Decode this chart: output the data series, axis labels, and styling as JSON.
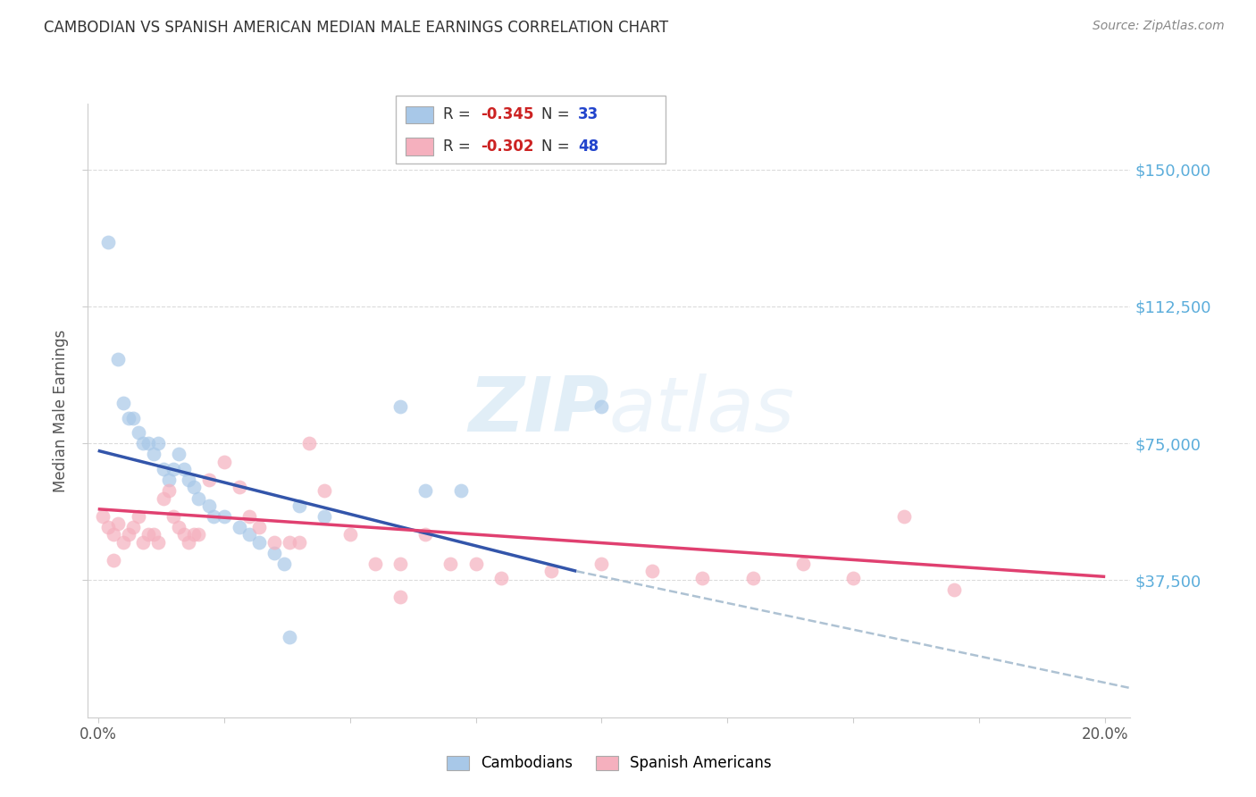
{
  "title": "CAMBODIAN VS SPANISH AMERICAN MEDIAN MALE EARNINGS CORRELATION CHART",
  "source": "Source: ZipAtlas.com",
  "ylabel": "Median Male Earnings",
  "ytick_labels": [
    "$37,500",
    "$75,000",
    "$112,500",
    "$150,000"
  ],
  "ytick_vals": [
    37500,
    75000,
    112500,
    150000
  ],
  "ylim": [
    0,
    168000
  ],
  "xlim": [
    -0.002,
    0.205
  ],
  "watermark_zip": "ZIP",
  "watermark_atlas": "atlas",
  "legend_r1": "R = ",
  "legend_v1": "-0.345",
  "legend_n1_label": "N = ",
  "legend_n1": "33",
  "legend_r2": "R = ",
  "legend_v2": "-0.302",
  "legend_n2_label": "N = ",
  "legend_n2": "48",
  "legend_label1": "Cambodians",
  "legend_label2": "Spanish Americans",
  "cambodian_color": "#a8c8e8",
  "spanish_color": "#f5b0be",
  "cambodian_edge": "#7090c0",
  "spanish_edge": "#e06070",
  "blue_line_color": "#3355aa",
  "pink_line_color": "#e04070",
  "dashed_line_color": "#a0b8cc",
  "right_label_color": "#5baddb",
  "grid_color": "#cccccc",
  "background_color": "#ffffff",
  "title_color": "#333333",
  "source_color": "#888888",
  "cambodian_scatter": [
    [
      0.002,
      130000
    ],
    [
      0.004,
      98000
    ],
    [
      0.005,
      86000
    ],
    [
      0.006,
      82000
    ],
    [
      0.007,
      82000
    ],
    [
      0.008,
      78000
    ],
    [
      0.009,
      75000
    ],
    [
      0.01,
      75000
    ],
    [
      0.011,
      72000
    ],
    [
      0.012,
      75000
    ],
    [
      0.013,
      68000
    ],
    [
      0.014,
      65000
    ],
    [
      0.015,
      68000
    ],
    [
      0.016,
      72000
    ],
    [
      0.017,
      68000
    ],
    [
      0.018,
      65000
    ],
    [
      0.019,
      63000
    ],
    [
      0.02,
      60000
    ],
    [
      0.022,
      58000
    ],
    [
      0.023,
      55000
    ],
    [
      0.025,
      55000
    ],
    [
      0.028,
      52000
    ],
    [
      0.03,
      50000
    ],
    [
      0.032,
      48000
    ],
    [
      0.035,
      45000
    ],
    [
      0.037,
      42000
    ],
    [
      0.04,
      58000
    ],
    [
      0.045,
      55000
    ],
    [
      0.06,
      85000
    ],
    [
      0.065,
      62000
    ],
    [
      0.072,
      62000
    ],
    [
      0.1,
      85000
    ],
    [
      0.038,
      22000
    ]
  ],
  "spanish_scatter": [
    [
      0.001,
      55000
    ],
    [
      0.002,
      52000
    ],
    [
      0.003,
      50000
    ],
    [
      0.004,
      53000
    ],
    [
      0.005,
      48000
    ],
    [
      0.006,
      50000
    ],
    [
      0.007,
      52000
    ],
    [
      0.008,
      55000
    ],
    [
      0.009,
      48000
    ],
    [
      0.01,
      50000
    ],
    [
      0.011,
      50000
    ],
    [
      0.012,
      48000
    ],
    [
      0.013,
      60000
    ],
    [
      0.014,
      62000
    ],
    [
      0.015,
      55000
    ],
    [
      0.016,
      52000
    ],
    [
      0.017,
      50000
    ],
    [
      0.018,
      48000
    ],
    [
      0.019,
      50000
    ],
    [
      0.02,
      50000
    ],
    [
      0.022,
      65000
    ],
    [
      0.025,
      70000
    ],
    [
      0.028,
      63000
    ],
    [
      0.03,
      55000
    ],
    [
      0.032,
      52000
    ],
    [
      0.035,
      48000
    ],
    [
      0.038,
      48000
    ],
    [
      0.04,
      48000
    ],
    [
      0.042,
      75000
    ],
    [
      0.045,
      62000
    ],
    [
      0.05,
      50000
    ],
    [
      0.055,
      42000
    ],
    [
      0.06,
      42000
    ],
    [
      0.065,
      50000
    ],
    [
      0.07,
      42000
    ],
    [
      0.075,
      42000
    ],
    [
      0.08,
      38000
    ],
    [
      0.09,
      40000
    ],
    [
      0.1,
      42000
    ],
    [
      0.11,
      40000
    ],
    [
      0.12,
      38000
    ],
    [
      0.13,
      38000
    ],
    [
      0.14,
      42000
    ],
    [
      0.15,
      38000
    ],
    [
      0.16,
      55000
    ],
    [
      0.17,
      35000
    ],
    [
      0.003,
      43000
    ],
    [
      0.06,
      33000
    ]
  ],
  "blue_line_x": [
    0.0,
    0.095
  ],
  "blue_line_y": [
    73000,
    40000
  ],
  "pink_line_x": [
    0.0,
    0.2
  ],
  "pink_line_y": [
    57000,
    38500
  ],
  "dashed_line_x": [
    0.095,
    0.205
  ],
  "dashed_line_y": [
    40000,
    8000
  ],
  "xtick_positions": [
    0.0,
    0.025,
    0.05,
    0.075,
    0.1,
    0.125,
    0.15,
    0.175,
    0.2
  ],
  "xtick_show_labels": [
    0.0,
    0.2
  ],
  "xtick_label_map": {
    "0.0": "0.0%",
    "0.2": "20.0%"
  }
}
